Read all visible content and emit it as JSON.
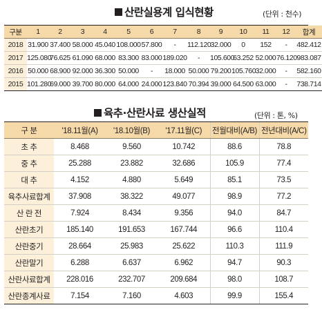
{
  "section1": {
    "title": "산란실용계 입식현황",
    "unit": "(단위 : 천수)",
    "headers": [
      "구분",
      "1",
      "2",
      "3",
      "4",
      "5",
      "6",
      "7",
      "8",
      "9",
      "10",
      "11",
      "12",
      "합계"
    ],
    "rows": [
      [
        "2018",
        "31.900",
        "37.400",
        "58.000",
        "45.040",
        "108.000",
        "57.800",
        "-",
        "112.120",
        "32.000",
        "0",
        "152",
        "-",
        "482.412"
      ],
      [
        "2017",
        "125.080",
        "76.625",
        "61.090",
        "68.000",
        "83.300",
        "83.000",
        "189.020",
        "-",
        "105.600",
        "63.252",
        "52.000",
        "76.120",
        "983.087"
      ],
      [
        "2016",
        "50.000",
        "68.900",
        "92.000",
        "36.300",
        "50.000",
        "-",
        "18.000",
        "50.000",
        "79.200",
        "105.760",
        "32.000",
        "-",
        "582.160"
      ],
      [
        "2015",
        "101.280",
        "69.000",
        "39.700",
        "80.000",
        "64.000",
        "24.000",
        "123.840",
        "70.394",
        "39.000",
        "64.500",
        "63.000",
        "-",
        "738.714"
      ]
    ]
  },
  "section2": {
    "title": "육추·산란사료 생산실적",
    "unit": "(단위 : 톤, %)",
    "headers": [
      "구 분",
      "'18.11월(A)",
      "'18.10월(B)",
      "'17.11월(C)",
      "전월대비(A/B)",
      "전년대비(A/C)"
    ],
    "rows": [
      [
        "초 추",
        "8.468",
        "9.560",
        "10.742",
        "88.6",
        "78.8"
      ],
      [
        "중 추",
        "25.288",
        "23.882",
        "32.686",
        "105.9",
        "77.4"
      ],
      [
        "대 추",
        "4.152",
        "4.880",
        "5.649",
        "85.1",
        "73.5"
      ],
      [
        "육추사료합계",
        "37.908",
        "38.322",
        "49.077",
        "98.9",
        "77.2"
      ],
      [
        "산 란 전",
        "7.924",
        "8.434",
        "9.356",
        "94.0",
        "84.7"
      ],
      [
        "산란초기",
        "185.140",
        "191.653",
        "167.744",
        "96.6",
        "110.4"
      ],
      [
        "산란중기",
        "28.664",
        "25.983",
        "25.622",
        "110.3",
        "111.9"
      ],
      [
        "산란말기",
        "6.288",
        "6.637",
        "6.962",
        "94.7",
        "90.3"
      ],
      [
        "산란사료합계",
        "228.016",
        "232.707",
        "209.684",
        "98.0",
        "108.7"
      ],
      [
        "산란종계사료",
        "7.154",
        "7.160",
        "4.603",
        "99.9",
        "155.4"
      ]
    ]
  }
}
